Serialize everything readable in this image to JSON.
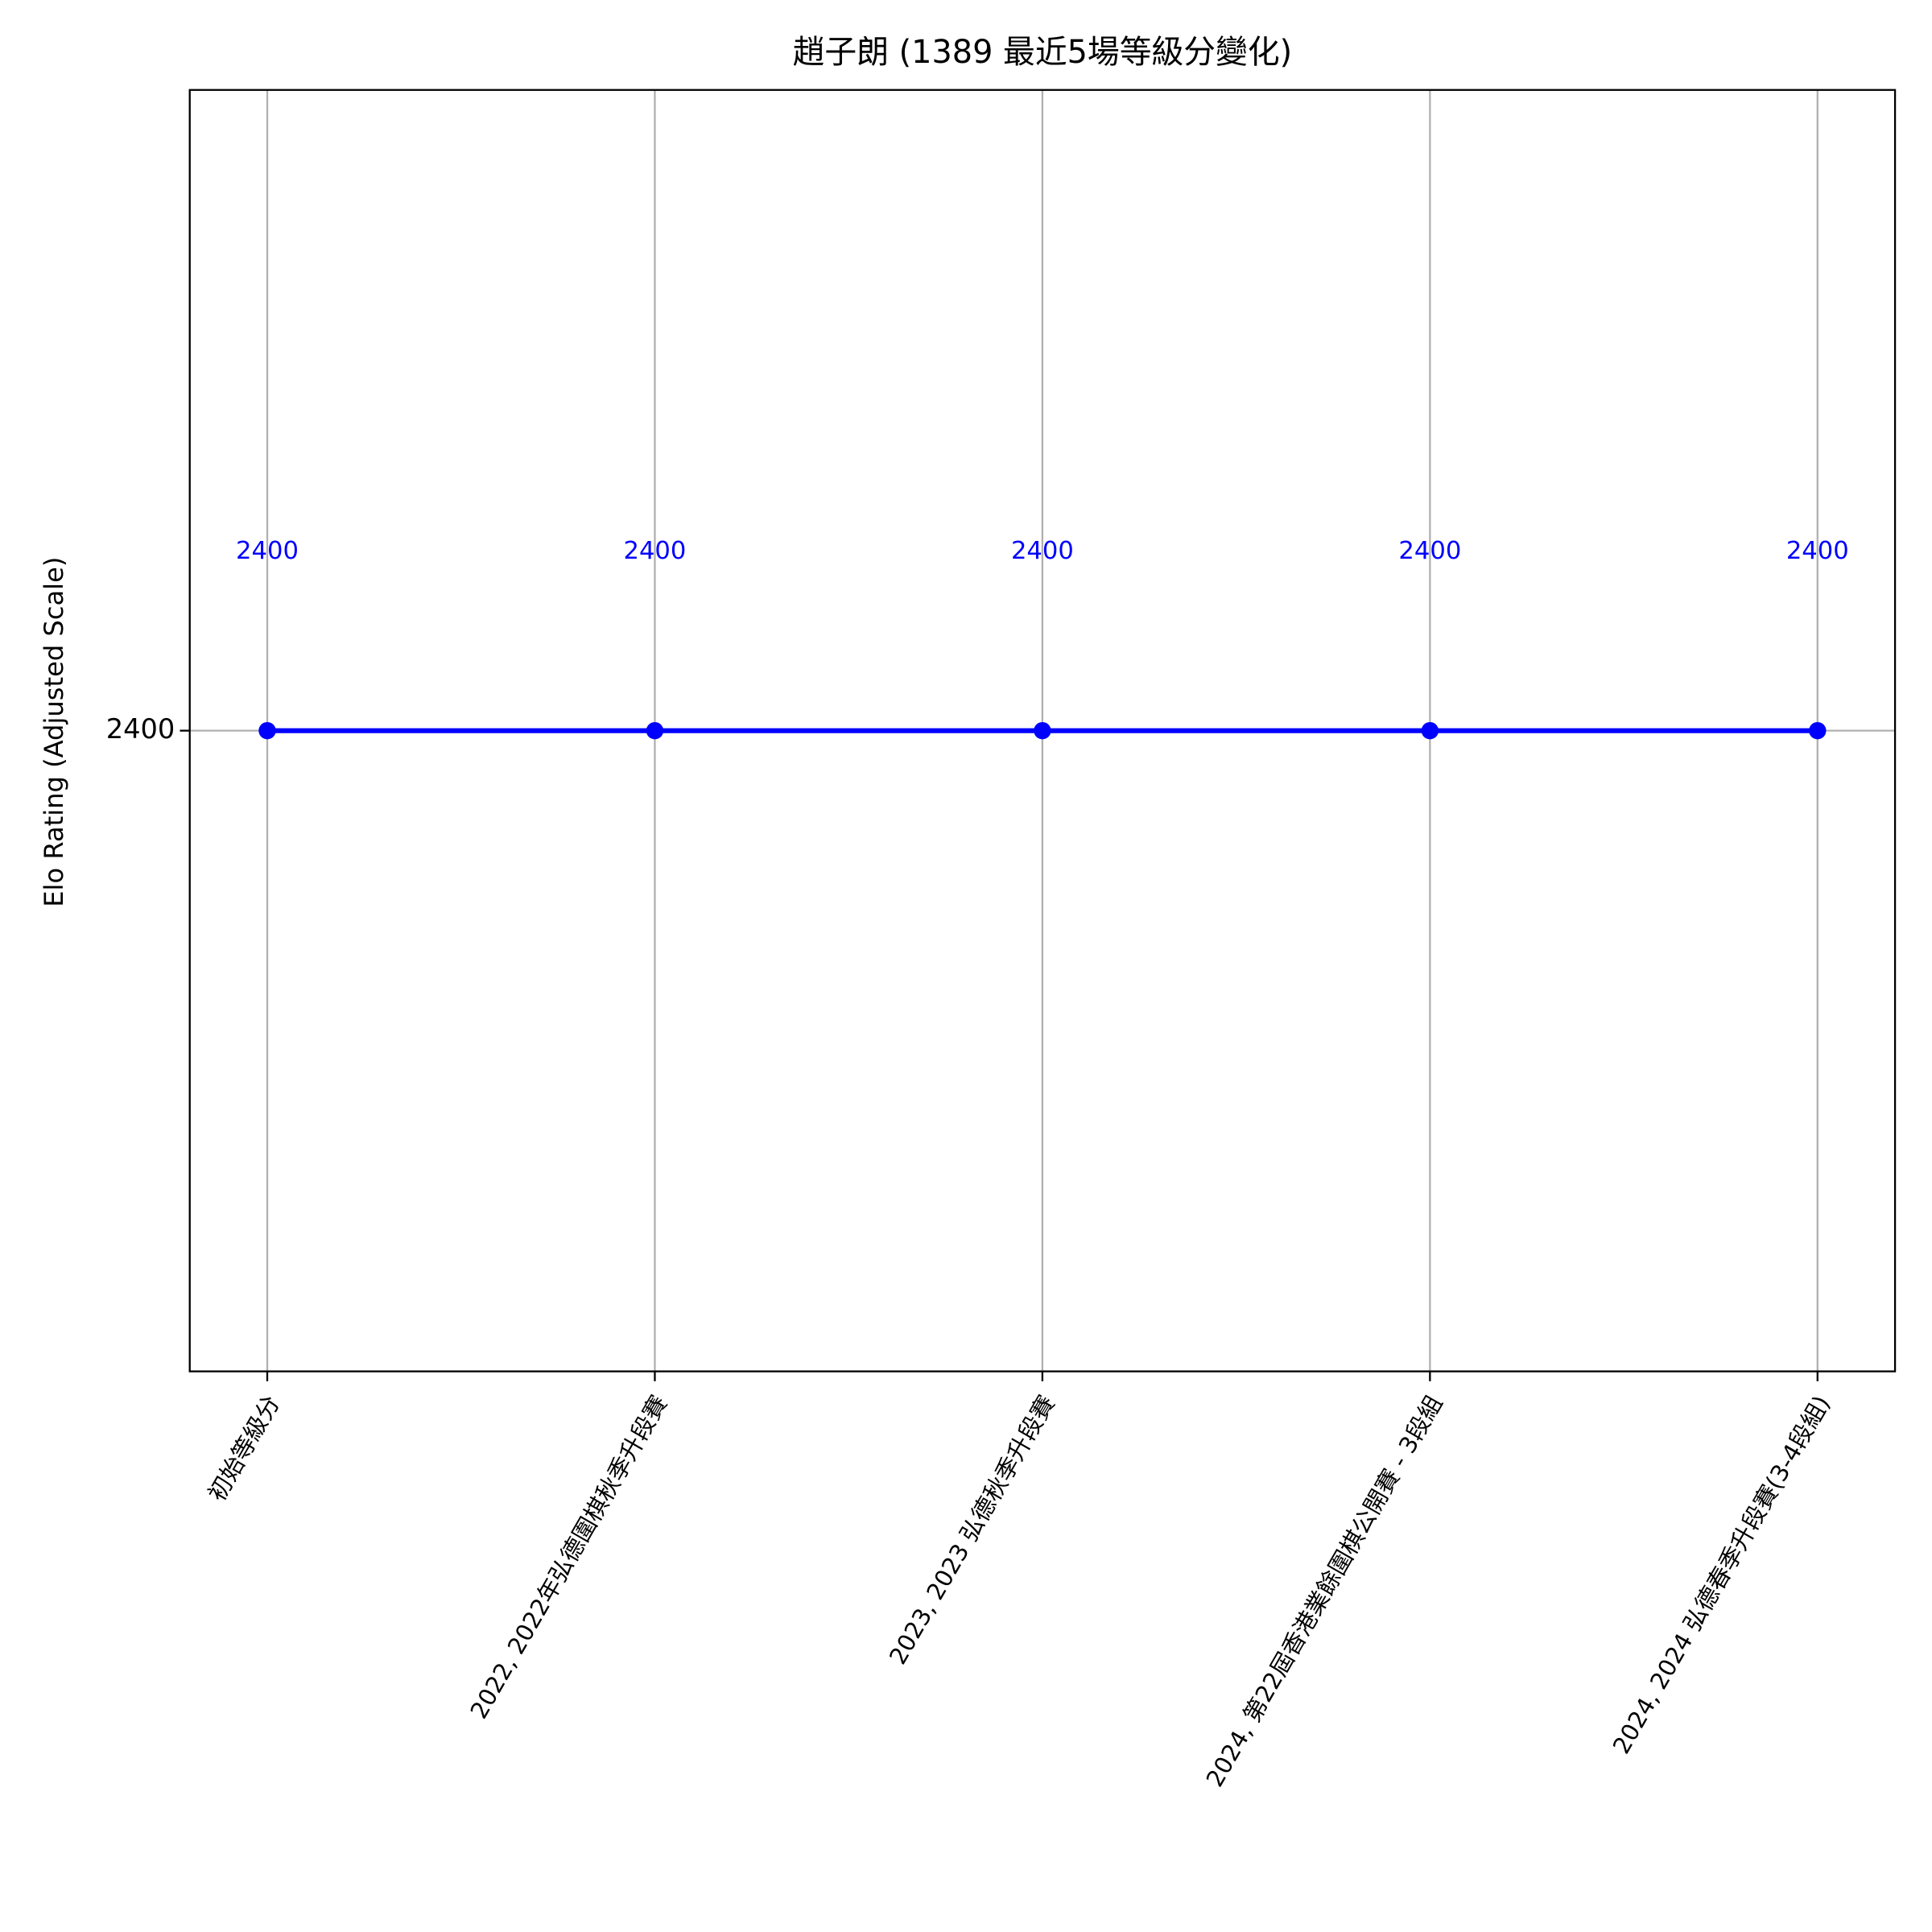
{
  "chart_data": {
    "type": "line",
    "title": "趙子朗 (1389 最近5場等級分變化)",
    "ylabel": "Elo Rating (Adjusted Scale)",
    "categories": [
      "初始等級分",
      "2022, 2022年弘德圍棋秋季升段賽",
      "2023, 2023 弘德秋季升段賽",
      "2024, 第22屆香港業餘圍棋公開賽 - 3段組",
      "2024, 2024 弘德春季升段賽(3-4段組)"
    ],
    "series": [
      {
        "color": "#0000ff",
        "values": [
          2400,
          2400,
          2400,
          2400,
          2400
        ]
      }
    ],
    "ylim": [
      2399.95,
      2400.05
    ],
    "yticks": [
      2400
    ],
    "grid": true,
    "data_labels": true
  }
}
